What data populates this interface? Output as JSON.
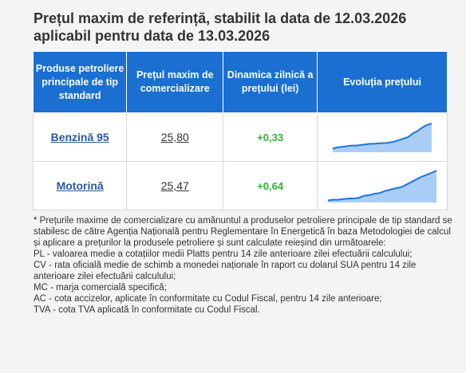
{
  "header": {
    "title_line1": "Prețul maxim de referință, stabilit la data de 12.03.2026",
    "title_line2": "aplicabil pentru data de 13.03.2026"
  },
  "table": {
    "columns": [
      "Produse petroliere principale de tip standard",
      "Prețul maxim de comercializare",
      "Dinamica zilnică a prețului (lei)",
      "Evoluția prețului"
    ],
    "rows": [
      {
        "product": "Benzină 95",
        "price": "25,80",
        "delta": "+0,33",
        "trend": [
          0.12,
          0.16,
          0.18,
          0.2,
          0.22,
          0.22,
          0.24,
          0.26,
          0.28,
          0.28,
          0.3,
          0.3,
          0.32,
          0.35,
          0.4,
          0.45,
          0.5,
          0.62,
          0.7,
          0.82,
          0.9,
          0.95
        ]
      },
      {
        "product": "Motorină",
        "price": "25,47",
        "delta": "+0,64",
        "trend": [
          0.06,
          0.08,
          0.08,
          0.1,
          0.12,
          0.12,
          0.14,
          0.2,
          0.22,
          0.26,
          0.28,
          0.34,
          0.38,
          0.42,
          0.45,
          0.52,
          0.6,
          0.68,
          0.76,
          0.82,
          0.88,
          0.95
        ]
      }
    ]
  },
  "colors": {
    "header_bg": "#1a6fd1",
    "link": "#2b5aa0",
    "positive": "#2fb62f",
    "spark_line": "#1a73e8",
    "spark_fill": "#a9cdf5"
  },
  "notes": [
    "* Prețurile maxime de comercializare cu amănuntul a produselor petroliere principale de tip standard se stabilesc de către Agenția Națională pentru Reglementare în Energetică în baza Metodologiei de calcul și aplicare a prețurilor la produsele petroliere și sunt calculate reieșind din următoarele:",
    "PL - valoarea medie a cotațiilor medii Platts pentru 14 zile anterioare zilei efectuării calculului;",
    "CV - rata oficială medie de schimb a monedei naționale în raport cu dolarul SUA pentru 14 zile anterioare zilei efectuării calculului;",
    "MC - marja comercială specifică;",
    "AC - cota accizelor, aplicate în conformitate cu Codul Fiscal, pentru 14 zile anterioare;",
    "TVA - cota TVA aplicată în conformitate cu Codul Fiscal."
  ]
}
